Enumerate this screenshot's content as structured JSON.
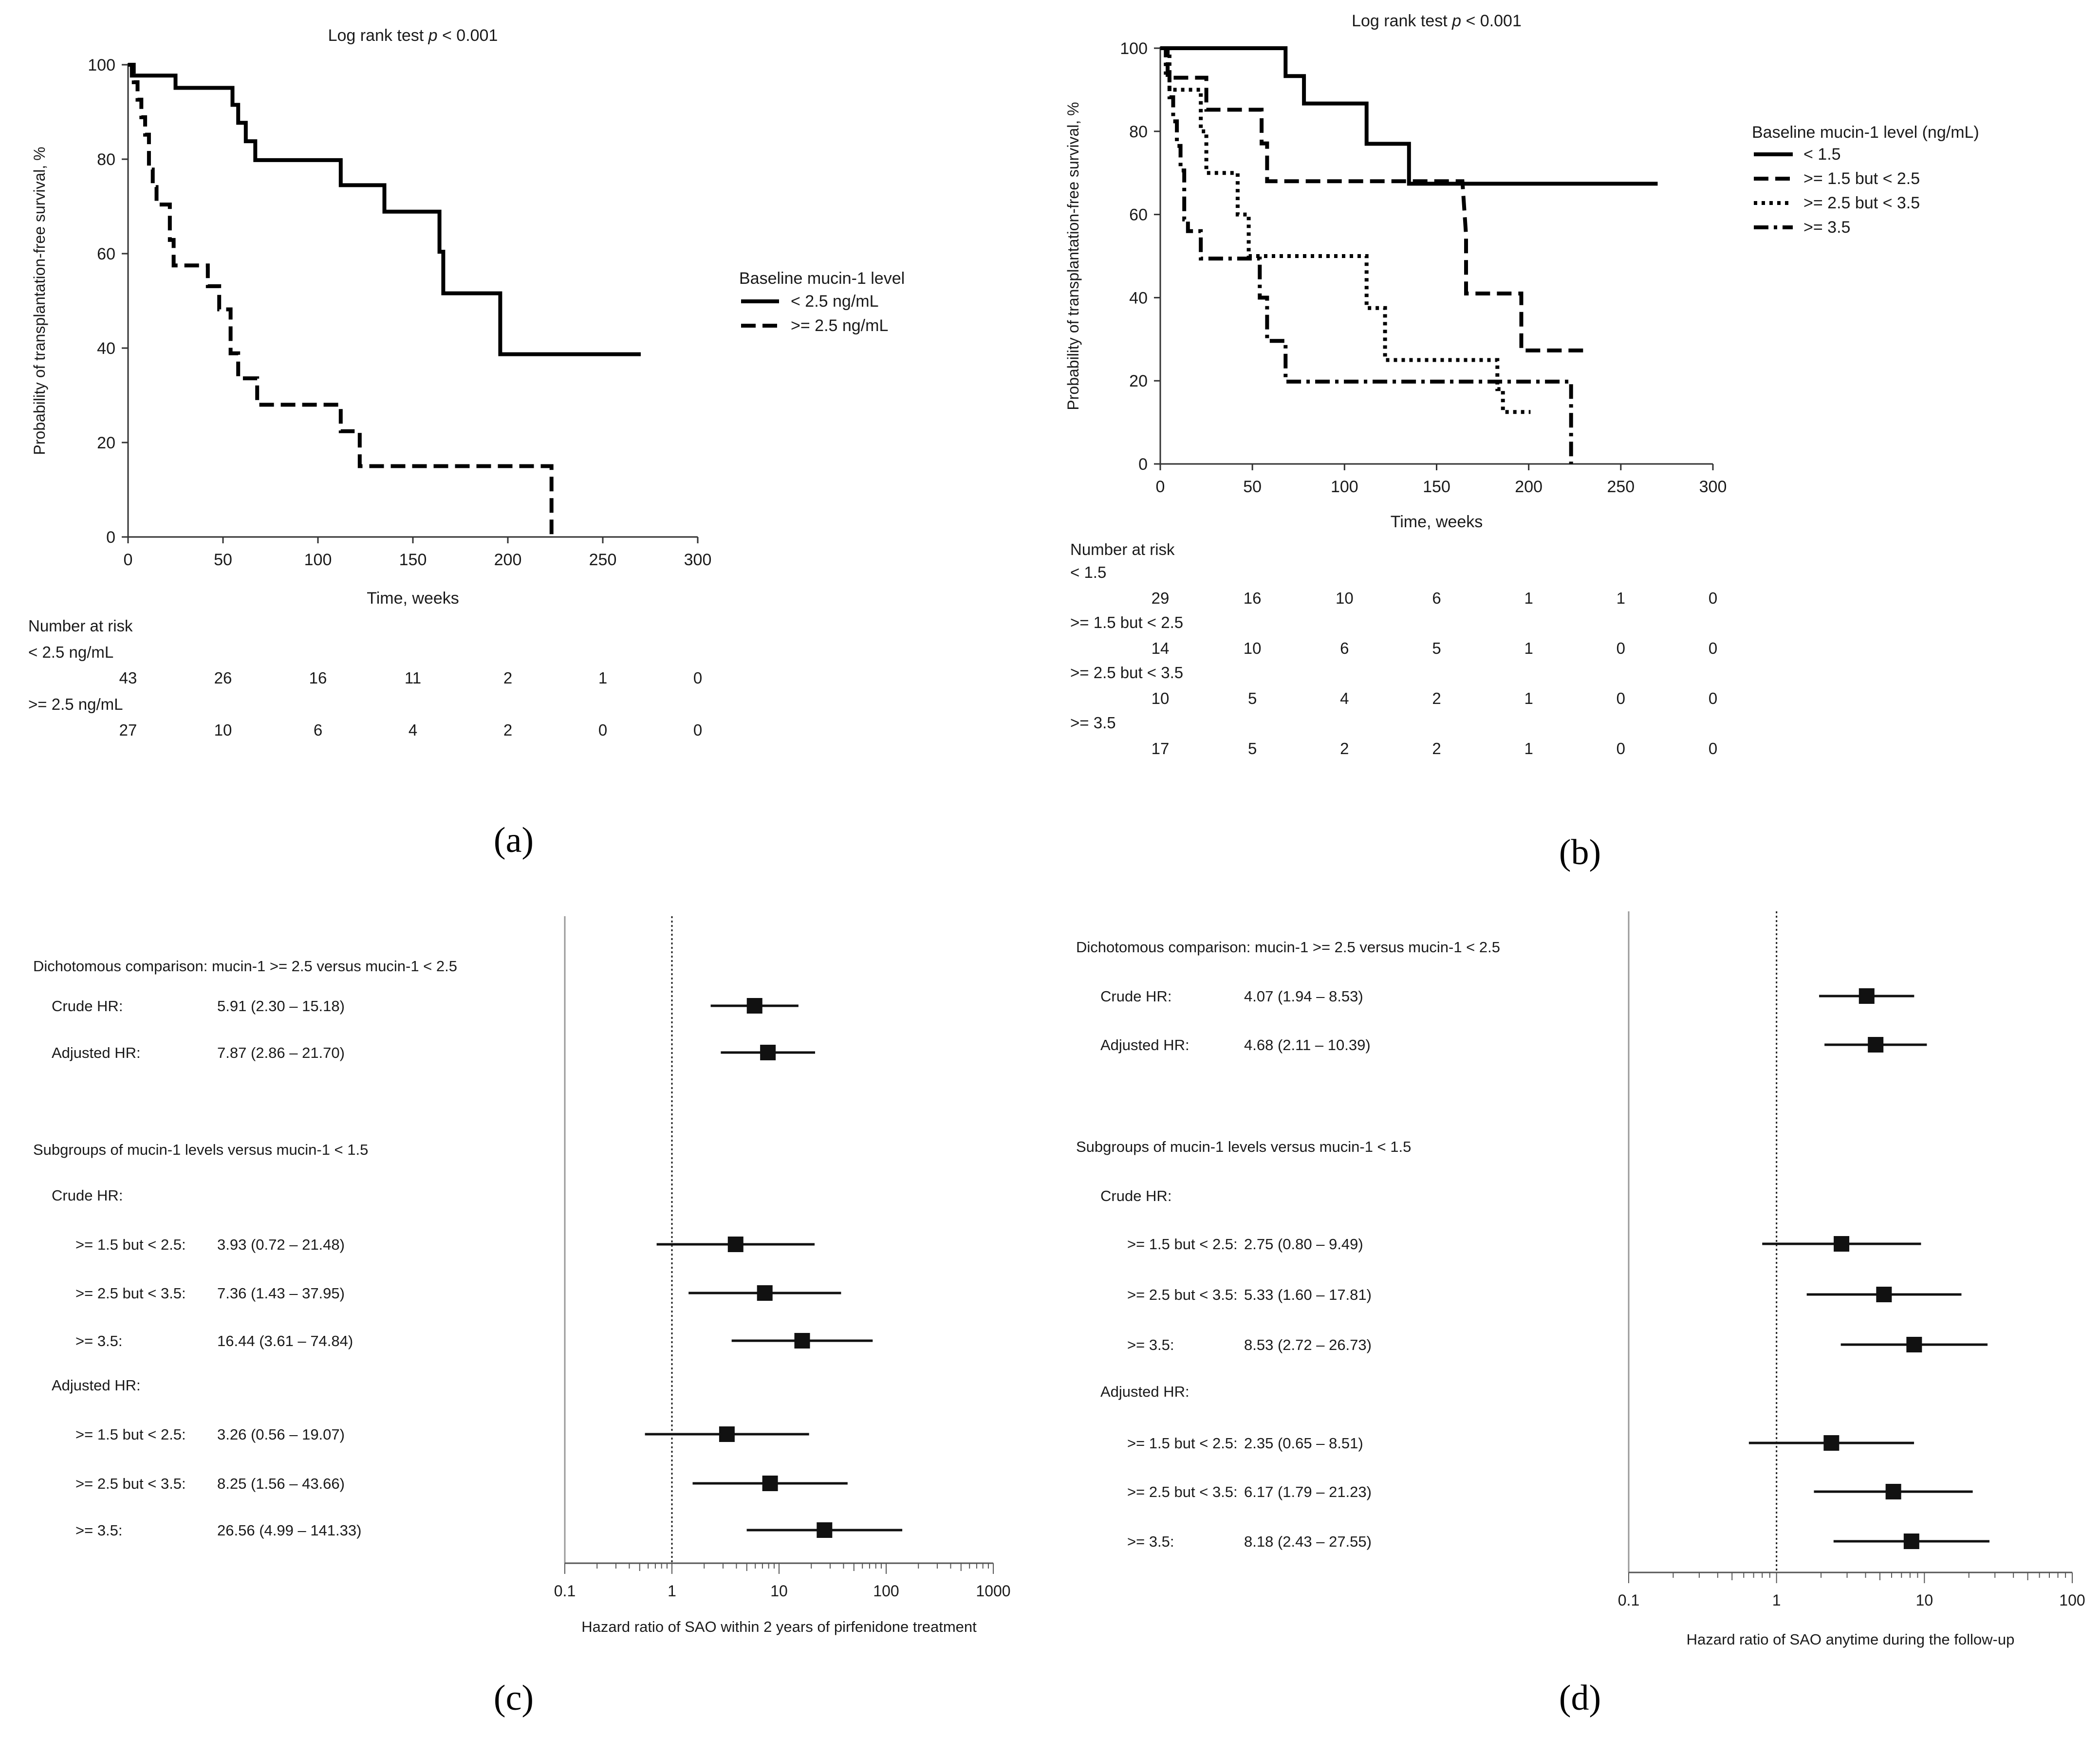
{
  "chart_data": [
    {
      "id": "a",
      "type": "line",
      "subtype": "kaplan-meier",
      "panel_label": "(a)",
      "title_prefix": "Log rank test ",
      "title_p": "p",
      "title_suffix": " < 0.001",
      "xlabel": "Time, weeks",
      "ylabel": "Probability of transplantation-free survival, %",
      "xlim": [
        0,
        300
      ],
      "ylim": [
        0,
        100
      ],
      "xticks": [
        0,
        50,
        100,
        150,
        200,
        250,
        300
      ],
      "yticks": [
        0,
        20,
        40,
        60,
        80,
        100
      ],
      "legend_title": "Baseline mucin-1 level",
      "series": [
        {
          "name": "< 2.5 ng/mL",
          "style": "solid",
          "x": [
            0,
            2,
            2,
            25,
            25,
            55,
            55,
            58,
            58,
            62,
            62,
            67,
            67,
            78,
            78,
            112,
            112,
            135,
            135,
            164,
            164,
            166,
            166,
            196,
            196,
            270
          ],
          "y": [
            100,
            100,
            97.7,
            97.7,
            95.1,
            95.1,
            91.5,
            91.5,
            87.7,
            87.7,
            83.8,
            83.8,
            79.8,
            79.8,
            79.8,
            79.8,
            74.5,
            74.5,
            68.9,
            68.9,
            60.4,
            60.4,
            51.6,
            51.6,
            38.7,
            38.7
          ]
        },
        {
          "name": ">= 2.5 ng/mL",
          "style": "dashed",
          "x": [
            0,
            3,
            3,
            5,
            5,
            7,
            7,
            9,
            9,
            11,
            11,
            13,
            13,
            15,
            15,
            22,
            22,
            24,
            24,
            42,
            42,
            48,
            48,
            54,
            54,
            58,
            58,
            68,
            68,
            112,
            112,
            122,
            122,
            183,
            183,
            223,
            223
          ],
          "y": [
            100,
            100,
            96.3,
            96.3,
            92.6,
            92.6,
            88.9,
            88.9,
            85.2,
            85.2,
            77.8,
            77.8,
            74.1,
            74.1,
            70.4,
            70.4,
            62.9,
            62.9,
            57.5,
            57.5,
            53.1,
            53.1,
            48.2,
            48.2,
            38.9,
            38.9,
            33.6,
            33.6,
            28.0,
            28.0,
            22.4,
            22.4,
            15.0,
            15.0,
            15.0,
            15.0,
            0
          ]
        }
      ],
      "risk_table": {
        "header": "Number at risk",
        "times": [
          0,
          50,
          100,
          150,
          200,
          250,
          300
        ],
        "groups": [
          {
            "label": "< 2.5 ng/mL",
            "values": [
              "43",
              "26",
              "16",
              "11",
              "2",
              "1",
              "0"
            ]
          },
          {
            "label": ">= 2.5 ng/mL",
            "values": [
              "27",
              "10",
              "6",
              "4",
              "2",
              "0",
              "0"
            ]
          }
        ]
      }
    },
    {
      "id": "b",
      "type": "line",
      "subtype": "kaplan-meier",
      "panel_label": "(b)",
      "title_prefix": "Log rank test ",
      "title_p": "p",
      "title_suffix": " < 0.001",
      "xlabel": "Time, weeks",
      "ylabel": "Probability of transplantation-free survival, %",
      "xlim": [
        0,
        300
      ],
      "ylim": [
        0,
        100
      ],
      "xticks": [
        0,
        50,
        100,
        150,
        200,
        250,
        300
      ],
      "yticks": [
        0,
        20,
        40,
        60,
        80,
        100
      ],
      "legend_title": "Baseline mucin-1 level (ng/mL)",
      "series": [
        {
          "name": "< 1.5",
          "style": "solid",
          "x": [
            0,
            68,
            68,
            78,
            78,
            112,
            112,
            135,
            135,
            270
          ],
          "y": [
            100,
            100,
            93.3,
            93.3,
            86.7,
            86.7,
            77.0,
            77.0,
            67.4,
            67.4
          ]
        },
        {
          "name": ">= 1.5 but < 2.5",
          "style": "dashed",
          "x": [
            0,
            4,
            4,
            25,
            25,
            55,
            55,
            58,
            58,
            164,
            166,
            166,
            196,
            196,
            233
          ],
          "y": [
            100,
            100,
            92.9,
            92.9,
            85.2,
            85.2,
            77.1,
            77.1,
            68.0,
            68.0,
            55.0,
            41.0,
            41.0,
            27.3,
            27.3
          ]
        },
        {
          "name": ">= 2.5 but < 3.5",
          "style": "dotted",
          "x": [
            0,
            5,
            5,
            12,
            12,
            22,
            22,
            25,
            25,
            42,
            42,
            48,
            48,
            54,
            54,
            112,
            112,
            122,
            122,
            183,
            183,
            186,
            186,
            201
          ],
          "y": [
            100,
            100,
            90,
            90,
            90,
            90,
            80,
            80,
            70,
            70,
            60,
            60,
            50,
            50,
            50,
            50,
            37.5,
            37.5,
            25,
            25,
            18,
            18,
            12.5,
            12.5
          ]
        },
        {
          "name": ">= 3.5",
          "style": "dashdot",
          "x": [
            0,
            3,
            3,
            5,
            5,
            7,
            7,
            9,
            9,
            11,
            11,
            13,
            13,
            15,
            15,
            22,
            22,
            54,
            54,
            58,
            58,
            68,
            68,
            223,
            223
          ],
          "y": [
            100,
            100,
            94.1,
            94.1,
            88.2,
            88.2,
            82.4,
            82.4,
            76.5,
            76.5,
            70.6,
            70.6,
            58.8,
            58.8,
            56.0,
            56.0,
            49.4,
            49.4,
            40.0,
            40.0,
            29.6,
            29.6,
            19.8,
            19.8,
            0
          ]
        }
      ],
      "risk_table": {
        "header": "Number at risk",
        "times": [
          0,
          50,
          100,
          150,
          200,
          250,
          300
        ],
        "groups": [
          {
            "label": "< 1.5",
            "values": [
              "29",
              "16",
              "10",
              "6",
              "1",
              "1",
              "0"
            ]
          },
          {
            "label": ">= 1.5 but < 2.5",
            "values": [
              "14",
              "10",
              "6",
              "5",
              "1",
              "0",
              "0"
            ]
          },
          {
            "label": ">= 2.5 but < 3.5",
            "values": [
              "10",
              "5",
              "4",
              "2",
              "1",
              "0",
              "0"
            ]
          },
          {
            "label": ">= 3.5",
            "values": [
              "17",
              "5",
              "2",
              "2",
              "1",
              "0",
              "0"
            ]
          }
        ]
      }
    },
    {
      "id": "c",
      "type": "scatter",
      "subtype": "forest",
      "panel_label": "(c)",
      "xscale": "log",
      "xlim": [
        0.1,
        1000
      ],
      "xticks": [
        0.1,
        1,
        10,
        100,
        1000
      ],
      "xtick_labels": [
        "0.1",
        "1",
        "10",
        "100",
        "1000"
      ],
      "reference_line": 1,
      "xlabel": "Hazard ratio of SAO within 2 years of pirfenidone treatment",
      "rows": [
        {
          "kind": "header",
          "indent": 0,
          "label": "Dichotomous comparison: mucin-1 >= 2.5 versus mucin-1 < 2.5"
        },
        {
          "kind": "estimate",
          "indent": 1,
          "label": "Crude HR:",
          "text": "5.91 (2.30 – 15.18)",
          "hr": 5.91,
          "lo": 2.3,
          "hi": 15.18
        },
        {
          "kind": "estimate",
          "indent": 1,
          "label": "Adjusted HR:",
          "text": "7.87 (2.86 – 21.70)",
          "hr": 7.87,
          "lo": 2.86,
          "hi": 21.7
        },
        {
          "kind": "spacer"
        },
        {
          "kind": "header",
          "indent": 0,
          "label": "Subgroups of mucin-1 levels versus mucin-1 < 1.5"
        },
        {
          "kind": "header",
          "indent": 1,
          "label": "Crude HR:"
        },
        {
          "kind": "estimate",
          "indent": 2,
          "label": ">= 1.5 but < 2.5:",
          "text": "3.93 (0.72 – 21.48)",
          "hr": 3.93,
          "lo": 0.72,
          "hi": 21.48
        },
        {
          "kind": "estimate",
          "indent": 2,
          "label": ">= 2.5 but < 3.5:",
          "text": "7.36 (1.43 – 37.95)",
          "hr": 7.36,
          "lo": 1.43,
          "hi": 37.95
        },
        {
          "kind": "estimate",
          "indent": 2,
          "label": ">= 3.5:",
          "text": "16.44 (3.61 – 74.84)",
          "hr": 16.44,
          "lo": 3.61,
          "hi": 74.84
        },
        {
          "kind": "header",
          "indent": 1,
          "label": "Adjusted HR:"
        },
        {
          "kind": "estimate",
          "indent": 2,
          "label": ">= 1.5 but < 2.5:",
          "text": "3.26 (0.56 – 19.07)",
          "hr": 3.26,
          "lo": 0.56,
          "hi": 19.07
        },
        {
          "kind": "estimate",
          "indent": 2,
          "label": ">= 2.5 but < 3.5:",
          "text": "8.25 (1.56 – 43.66)",
          "hr": 8.25,
          "lo": 1.56,
          "hi": 43.66
        },
        {
          "kind": "estimate",
          "indent": 2,
          "label": ">= 3.5:",
          "text": "26.56 (4.99 – 141.33)",
          "hr": 26.56,
          "lo": 4.99,
          "hi": 141.33
        }
      ]
    },
    {
      "id": "d",
      "type": "scatter",
      "subtype": "forest",
      "panel_label": "(d)",
      "xscale": "log",
      "xlim": [
        0.1,
        100
      ],
      "xticks": [
        0.1,
        1,
        10,
        100
      ],
      "xtick_labels": [
        "0.1",
        "1",
        "10",
        "100"
      ],
      "reference_line": 1,
      "xlabel": "Hazard ratio of SAO anytime during the follow-up",
      "rows": [
        {
          "kind": "header",
          "indent": 0,
          "label": "Dichotomous comparison: mucin-1 >= 2.5 versus mucin-1 < 2.5"
        },
        {
          "kind": "estimate",
          "indent": 1,
          "label": "Crude HR:",
          "text": "4.07 (1.94 – 8.53)",
          "hr": 4.07,
          "lo": 1.94,
          "hi": 8.53
        },
        {
          "kind": "estimate",
          "indent": 1,
          "label": "Adjusted HR:",
          "text": "4.68 (2.11 – 10.39)",
          "hr": 4.68,
          "lo": 2.11,
          "hi": 10.39
        },
        {
          "kind": "spacer"
        },
        {
          "kind": "header",
          "indent": 0,
          "label": "Subgroups of mucin-1 levels versus mucin-1 < 1.5"
        },
        {
          "kind": "header",
          "indent": 1,
          "label": "Crude HR:"
        },
        {
          "kind": "estimate",
          "indent": 2,
          "label": ">= 1.5 but < 2.5:",
          "text": "2.75 (0.80 – 9.49)",
          "hr": 2.75,
          "lo": 0.8,
          "hi": 9.49
        },
        {
          "kind": "estimate",
          "indent": 2,
          "label": ">= 2.5 but < 3.5:",
          "text": "5.33 (1.60 – 17.81)",
          "hr": 5.33,
          "lo": 1.6,
          "hi": 17.81
        },
        {
          "kind": "estimate",
          "indent": 2,
          "label": ">= 3.5:",
          "text": "8.53 (2.72 – 26.73)",
          "hr": 8.53,
          "lo": 2.72,
          "hi": 26.73
        },
        {
          "kind": "header",
          "indent": 1,
          "label": "Adjusted HR:"
        },
        {
          "kind": "estimate",
          "indent": 2,
          "label": ">= 1.5 but < 2.5:",
          "text": "2.35 (0.65 – 8.51)",
          "hr": 2.35,
          "lo": 0.65,
          "hi": 8.51
        },
        {
          "kind": "estimate",
          "indent": 2,
          "label": ">= 2.5 but < 3.5:",
          "text": "6.17 (1.79 – 21.23)",
          "hr": 6.17,
          "lo": 1.79,
          "hi": 21.23
        },
        {
          "kind": "estimate",
          "indent": 2,
          "label": ">= 3.5:",
          "text": "8.18 (2.43 – 27.55)",
          "hr": 8.18,
          "lo": 2.43,
          "hi": 27.55
        }
      ]
    }
  ]
}
